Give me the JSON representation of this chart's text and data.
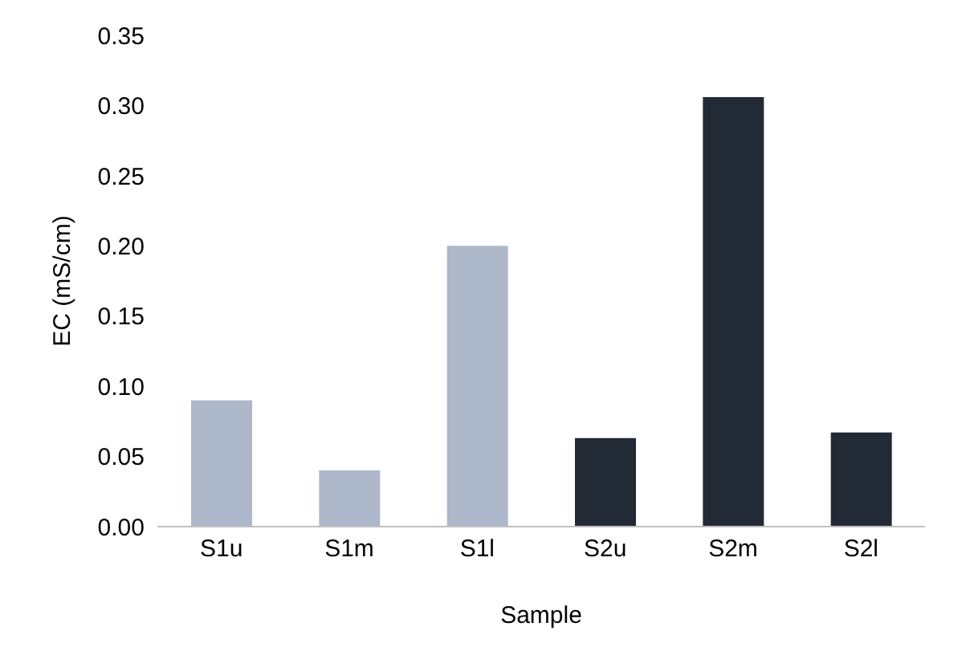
{
  "chart_data": {
    "type": "bar",
    "xlabel": "Sample",
    "ylabel": "EC (mS/cm)",
    "categories": [
      "S1u",
      "S1m",
      "S1l",
      "S2u",
      "S2m",
      "S2l"
    ],
    "values": [
      0.09,
      0.04,
      0.2,
      0.063,
      0.306,
      0.067
    ],
    "colors": [
      "#adb9ca",
      "#adb9ca",
      "#adb9ca",
      "#222a35",
      "#222a35",
      "#222a35"
    ],
    "ylim": [
      0,
      0.35
    ],
    "yticks": [
      {
        "value": 0,
        "label": "0.00"
      },
      {
        "value": 0.05,
        "label": "0.05"
      },
      {
        "value": 0.1,
        "label": "0.10"
      },
      {
        "value": 0.15,
        "label": "0.15"
      },
      {
        "value": 0.2,
        "label": "0.20"
      },
      {
        "value": 0.25,
        "label": "0.25"
      },
      {
        "value": 0.3,
        "label": "0.30"
      },
      {
        "value": 0.35,
        "label": "0.35"
      }
    ]
  }
}
